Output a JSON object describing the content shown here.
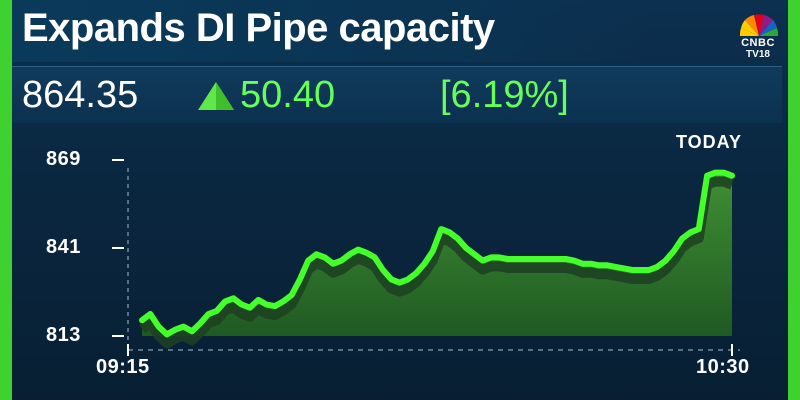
{
  "headline": "Expands DI Pipe capacity",
  "logo": {
    "line1": "CNBC",
    "line2": "TV18"
  },
  "quote": {
    "price": "864.35",
    "change": "50.40",
    "change_pct": "[6.19%]",
    "direction_icon": "up-triangle-icon"
  },
  "period_label": "TODAY",
  "colors": {
    "accent": "#3fd12f",
    "line": "#44ff2a",
    "positive_text": "#66ff57",
    "background": "#0a2a44"
  },
  "chart_data": {
    "type": "area",
    "title": "",
    "xlabel": "",
    "ylabel": "",
    "x_tick_labels": [
      "09:15",
      "10:30"
    ],
    "y_ticks": [
      813,
      841,
      869
    ],
    "ylim": [
      813,
      869
    ],
    "series": [
      {
        "values": [
          818,
          820,
          816,
          813.5,
          815,
          816,
          814.5,
          817,
          820,
          821,
          824,
          825,
          823,
          822,
          824.5,
          823,
          822.5,
          824,
          826,
          831,
          837,
          839,
          838,
          836,
          837,
          839,
          840.5,
          839.5,
          838,
          834,
          831,
          830,
          831,
          833,
          836,
          840,
          847,
          846,
          844,
          841,
          839,
          837,
          838,
          838,
          837.5,
          837.5,
          837.5,
          837.5,
          837.5,
          837.5,
          837.5,
          837.5,
          837,
          836,
          836,
          835.5,
          835.5,
          835,
          834.5,
          834,
          834,
          834,
          835,
          837,
          840,
          844,
          846,
          847,
          864,
          865,
          865,
          864
        ]
      }
    ],
    "grid": false
  }
}
